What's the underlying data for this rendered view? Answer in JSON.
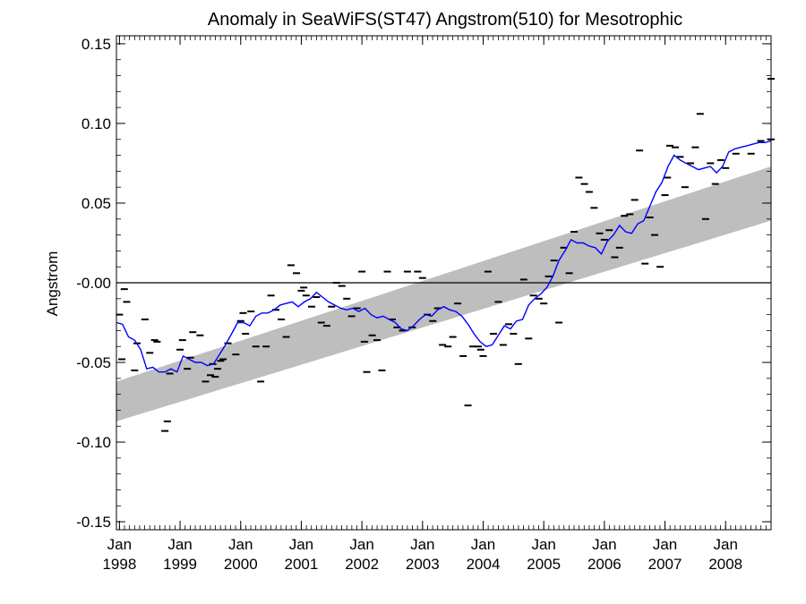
{
  "chart_data": {
    "type": "line",
    "title": "Anomaly in SeaWiFS(ST47) Angstrom(510) for Mesotrophic",
    "xlabel": "",
    "ylabel": "Angstrom",
    "xlim": [
      1997.95,
      2008.75
    ],
    "ylim": [
      -0.155,
      0.155
    ],
    "y_ticks": [
      {
        "value": 0.15,
        "label": "0.15"
      },
      {
        "value": 0.1,
        "label": "0.10"
      },
      {
        "value": 0.05,
        "label": "0.05"
      },
      {
        "value": 0.0,
        "label": "-0.00"
      },
      {
        "value": -0.05,
        "label": "-0.05"
      },
      {
        "value": -0.1,
        "label": "-0.10"
      },
      {
        "value": -0.15,
        "label": "-0.15"
      }
    ],
    "x_ticks": [
      {
        "value": 1998.0,
        "month": "Jan",
        "year": "1998"
      },
      {
        "value": 1999.0,
        "month": "Jan",
        "year": "1999"
      },
      {
        "value": 2000.0,
        "month": "Jan",
        "year": "2000"
      },
      {
        "value": 2001.0,
        "month": "Jan",
        "year": "2001"
      },
      {
        "value": 2002.0,
        "month": "Jan",
        "year": "2002"
      },
      {
        "value": 2003.0,
        "month": "Jan",
        "year": "2003"
      },
      {
        "value": 2004.0,
        "month": "Jan",
        "year": "2004"
      },
      {
        "value": 2005.0,
        "month": "Jan",
        "year": "2005"
      },
      {
        "value": 2006.0,
        "month": "Jan",
        "year": "2006"
      },
      {
        "value": 2007.0,
        "month": "Jan",
        "year": "2007"
      },
      {
        "value": 2008.0,
        "month": "Jan",
        "year": "2008"
      }
    ],
    "zero_line": 0.0,
    "trend_band": {
      "x": [
        1997.95,
        2008.75
      ],
      "lower": [
        -0.087,
        0.039
      ],
      "upper": [
        -0.062,
        0.073
      ]
    },
    "series": [
      {
        "type": "scatter",
        "marker": "dash",
        "color": "#000000",
        "x": [
          1998.0,
          1998.04,
          1998.08,
          1998.12,
          1998.25,
          1998.29,
          1998.42,
          1998.5,
          1998.58,
          1998.62,
          1998.75,
          1998.79,
          1998.83,
          1999.0,
          1999.04,
          1999.12,
          1999.17,
          1999.21,
          1999.33,
          1999.42,
          1999.5,
          1999.54,
          1999.58,
          1999.62,
          1999.67,
          1999.71,
          1999.79,
          1999.92,
          2000.0,
          2000.04,
          2000.08,
          2000.17,
          2000.25,
          2000.33,
          2000.42,
          2000.5,
          2000.58,
          2000.67,
          2000.75,
          2000.83,
          2000.92,
          2001.0,
          2001.04,
          2001.08,
          2001.17,
          2001.25,
          2001.33,
          2001.42,
          2001.5,
          2001.58,
          2001.67,
          2001.75,
          2001.83,
          2001.92,
          2002.0,
          2002.04,
          2002.08,
          2002.17,
          2002.25,
          2002.33,
          2002.42,
          2002.5,
          2002.58,
          2002.67,
          2002.75,
          2002.83,
          2002.92,
          2003.0,
          2003.08,
          2003.17,
          2003.25,
          2003.33,
          2003.42,
          2003.5,
          2003.58,
          2003.67,
          2003.75,
          2003.83,
          2003.92,
          2003.96,
          2004.0,
          2004.08,
          2004.17,
          2004.25,
          2004.33,
          2004.42,
          2004.5,
          2004.58,
          2004.67,
          2004.75,
          2004.83,
          2004.92,
          2005.0,
          2005.08,
          2005.17,
          2005.25,
          2005.33,
          2005.42,
          2005.5,
          2005.58,
          2005.67,
          2005.75,
          2005.83,
          2005.92,
          2006.0,
          2006.08,
          2006.17,
          2006.25,
          2006.33,
          2006.42,
          2006.5,
          2006.58,
          2006.67,
          2006.75,
          2006.83,
          2006.92,
          2007.0,
          2007.04,
          2007.08,
          2007.17,
          2007.25,
          2007.33,
          2007.42,
          2007.5,
          2007.58,
          2007.67,
          2007.75,
          2007.83,
          2007.92,
          2008.0,
          2008.17,
          2008.42,
          2008.58,
          2008.75
        ],
        "y": [
          -0.02,
          -0.048,
          -0.004,
          -0.012,
          -0.055,
          -0.038,
          -0.023,
          -0.044,
          -0.036,
          -0.037,
          -0.093,
          -0.087,
          -0.057,
          -0.042,
          -0.036,
          -0.054,
          -0.047,
          -0.031,
          -0.033,
          -0.062,
          -0.058,
          -0.051,
          -0.059,
          -0.054,
          -0.049,
          -0.048,
          -0.038,
          -0.045,
          -0.024,
          -0.019,
          -0.032,
          -0.018,
          -0.04,
          -0.062,
          -0.04,
          -0.008,
          -0.017,
          -0.023,
          -0.034,
          0.011,
          0.006,
          -0.005,
          -0.003,
          -0.008,
          -0.015,
          -0.009,
          -0.025,
          -0.027,
          -0.015,
          0.0,
          -0.002,
          -0.01,
          -0.021,
          -0.016,
          0.007,
          -0.037,
          -0.056,
          -0.033,
          -0.036,
          -0.055,
          0.007,
          -0.023,
          -0.028,
          -0.03,
          0.007,
          -0.028,
          0.007,
          0.003,
          -0.02,
          -0.024,
          -0.016,
          -0.039,
          -0.04,
          -0.034,
          -0.013,
          -0.046,
          -0.077,
          -0.04,
          -0.04,
          -0.042,
          -0.046,
          0.007,
          -0.032,
          -0.012,
          -0.039,
          -0.026,
          -0.032,
          -0.051,
          0.002,
          -0.035,
          -0.008,
          -0.01,
          -0.013,
          0.004,
          0.014,
          -0.025,
          0.022,
          0.006,
          0.032,
          0.066,
          0.062,
          0.057,
          0.047,
          0.031,
          0.027,
          0.033,
          0.016,
          0.022,
          0.042,
          0.043,
          0.052,
          0.083,
          0.012,
          0.041,
          0.03,
          0.01,
          0.055,
          0.066,
          0.086,
          0.085,
          0.079,
          0.06,
          0.075,
          0.085,
          0.106,
          0.04,
          0.075,
          0.062,
          0.077,
          0.072,
          0.081,
          0.081,
          0.089,
          0.09
        ],
        "y_extra_points": [
          {
            "x": 2008.75,
            "y": 0.128
          }
        ]
      },
      {
        "type": "line",
        "color": "#0000ff",
        "x": [
          1997.95,
          1998.05,
          1998.15,
          1998.25,
          1998.35,
          1998.45,
          1998.55,
          1998.65,
          1998.75,
          1998.85,
          1998.95,
          1999.05,
          1999.15,
          1999.25,
          1999.35,
          1999.45,
          1999.55,
          1999.65,
          1999.75,
          1999.85,
          1999.95,
          2000.05,
          2000.15,
          2000.25,
          2000.35,
          2000.45,
          2000.55,
          2000.65,
          2000.75,
          2000.85,
          2000.95,
          2001.05,
          2001.15,
          2001.25,
          2001.35,
          2001.45,
          2001.55,
          2001.65,
          2001.75,
          2001.85,
          2001.95,
          2002.05,
          2002.15,
          2002.25,
          2002.35,
          2002.45,
          2002.55,
          2002.65,
          2002.75,
          2002.85,
          2002.95,
          2003.05,
          2003.15,
          2003.25,
          2003.35,
          2003.45,
          2003.55,
          2003.65,
          2003.75,
          2003.85,
          2003.95,
          2004.05,
          2004.15,
          2004.25,
          2004.35,
          2004.45,
          2004.55,
          2004.65,
          2004.75,
          2004.85,
          2004.95,
          2005.05,
          2005.15,
          2005.25,
          2005.35,
          2005.45,
          2005.55,
          2005.65,
          2005.75,
          2005.85,
          2005.95,
          2006.05,
          2006.15,
          2006.25,
          2006.35,
          2006.45,
          2006.55,
          2006.65,
          2006.75,
          2006.85,
          2006.95,
          2007.05,
          2007.15,
          2007.25,
          2007.35,
          2007.45,
          2007.55,
          2007.65,
          2007.75,
          2007.85,
          2007.95,
          2008.05,
          2008.15,
          2008.25,
          2008.35,
          2008.45,
          2008.55,
          2008.65,
          2008.75
        ],
        "y": [
          -0.025,
          -0.026,
          -0.034,
          -0.036,
          -0.042,
          -0.054,
          -0.053,
          -0.056,
          -0.056,
          -0.054,
          -0.056,
          -0.046,
          -0.048,
          -0.05,
          -0.05,
          -0.052,
          -0.051,
          -0.045,
          -0.039,
          -0.032,
          -0.025,
          -0.025,
          -0.027,
          -0.021,
          -0.019,
          -0.019,
          -0.017,
          -0.014,
          -0.013,
          -0.012,
          -0.015,
          -0.012,
          -0.01,
          -0.006,
          -0.009,
          -0.012,
          -0.014,
          -0.016,
          -0.017,
          -0.016,
          -0.018,
          -0.016,
          -0.02,
          -0.022,
          -0.021,
          -0.023,
          -0.025,
          -0.029,
          -0.03,
          -0.027,
          -0.023,
          -0.02,
          -0.021,
          -0.017,
          -0.015,
          -0.017,
          -0.018,
          -0.021,
          -0.026,
          -0.032,
          -0.037,
          -0.04,
          -0.039,
          -0.033,
          -0.027,
          -0.029,
          -0.024,
          -0.023,
          -0.014,
          -0.01,
          -0.007,
          -0.003,
          0.004,
          0.014,
          0.02,
          0.027,
          0.025,
          0.025,
          0.023,
          0.022,
          0.018,
          0.026,
          0.03,
          0.036,
          0.032,
          0.031,
          0.037,
          0.039,
          0.048,
          0.057,
          0.063,
          0.073,
          0.08,
          0.077,
          0.075,
          0.073,
          0.071,
          0.072,
          0.073,
          0.069,
          0.073,
          0.082,
          0.084,
          0.085,
          0.086,
          0.087,
          0.088,
          0.088,
          0.089
        ]
      }
    ]
  }
}
